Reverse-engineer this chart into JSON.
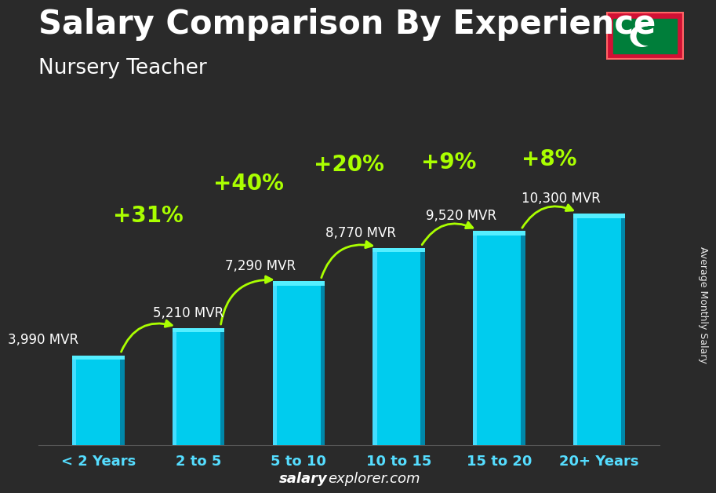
{
  "title": "Salary Comparison By Experience",
  "subtitle": "Nursery Teacher",
  "categories": [
    "< 2 Years",
    "2 to 5",
    "5 to 10",
    "10 to 15",
    "15 to 20",
    "20+ Years"
  ],
  "values": [
    3990,
    5210,
    7290,
    8770,
    9520,
    10300
  ],
  "bar_face_color": "#00CCEE",
  "bar_light_color": "#44DDFF",
  "bar_dark_color": "#0088AA",
  "bar_top_color": "#55EEFF",
  "pct_changes": [
    null,
    "+31%",
    "+40%",
    "+20%",
    "+9%",
    "+8%"
  ],
  "value_labels": [
    "3,990 MVR",
    "5,210 MVR",
    "7,290 MVR",
    "8,770 MVR",
    "9,520 MVR",
    "10,300 MVR"
  ],
  "pct_color": "#AAFF00",
  "title_color": "#FFFFFF",
  "subtitle_color": "#FFFFFF",
  "tick_color": "#55DDFF",
  "value_label_color": "#FFFFFF",
  "ylabel": "Average Monthly Salary",
  "footer_bold": "salary",
  "footer_rest": "explorer.com",
  "background_color": "#2a2a2a",
  "overlay_alpha": 0.55,
  "title_fontsize": 30,
  "subtitle_fontsize": 19,
  "tick_fontsize": 13,
  "value_fontsize": 12,
  "pct_fontsize": 20,
  "flag_red": "#D21034",
  "flag_green": "#007E3A",
  "ylim": [
    0,
    13000
  ],
  "bar_width": 0.52
}
